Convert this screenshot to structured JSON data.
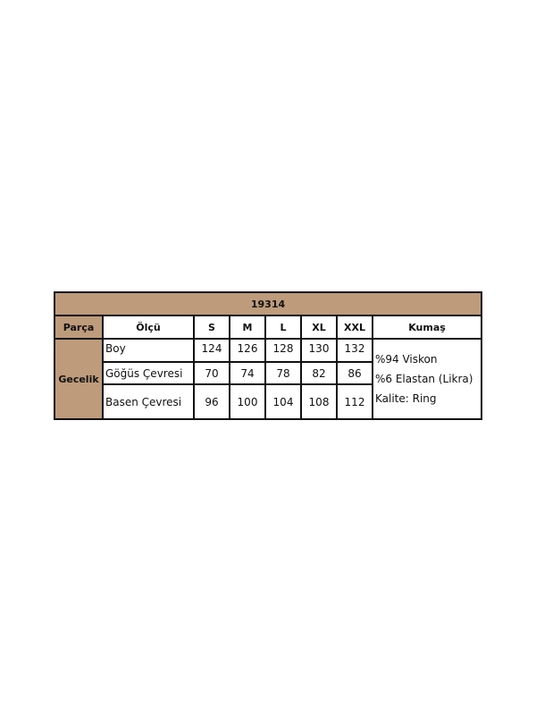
{
  "title": "19314",
  "headers": [
    "Parça",
    "Ölçü",
    "S",
    "M",
    "L",
    "XL",
    "XXL",
    "Kumaş"
  ],
  "part": "Gecelik",
  "rows": [
    {
      "label": "Boy",
      "values": [
        "124",
        "126",
        "128",
        "130",
        "132"
      ]
    },
    {
      "label": "Göğüs Çevresi",
      "values": [
        "70",
        "74",
        "78",
        "82",
        "86"
      ]
    },
    {
      "label": "Basen Çevresi",
      "values": [
        "96",
        "100",
        "104",
        "108",
        "112"
      ]
    }
  ],
  "fabric": [
    "%94 Viskon",
    "%6 Elastan (Likra)",
    "Kalite: Ring"
  ],
  "colors": {
    "header_bg": "#be9b7b",
    "border": "#111111"
  }
}
